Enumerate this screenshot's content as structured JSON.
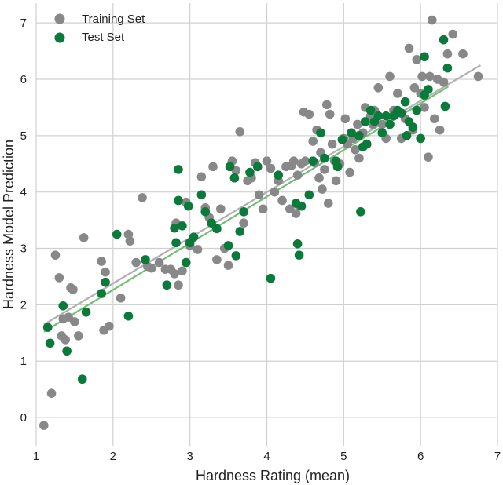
{
  "chart_data": {
    "type": "scatter",
    "title": "",
    "xlabel": "Hardness Rating (mean)",
    "ylabel": "Hardness Model Prediction",
    "xlim": [
      1,
      7
    ],
    "ylim": [
      -0.5,
      7.35
    ],
    "xticks": [
      1,
      2,
      3,
      4,
      5,
      6,
      7
    ],
    "yticks": [
      0,
      1,
      2,
      3,
      4,
      5,
      6,
      7
    ],
    "grid": true,
    "legend_position": "top-left",
    "colors": {
      "train": "#888888",
      "test": "#0a7a3a",
      "train_fit": "#b0b0b0",
      "test_fit": "#6fbf73",
      "grid": "#d0d0d0"
    },
    "series": [
      {
        "name": "Training Set",
        "color": "#888888",
        "points": [
          [
            1.1,
            -0.14
          ],
          [
            1.2,
            0.43
          ],
          [
            1.25,
            2.88
          ],
          [
            1.3,
            2.48
          ],
          [
            1.33,
            1.45
          ],
          [
            1.35,
            1.75
          ],
          [
            1.38,
            1.38
          ],
          [
            1.42,
            1.78
          ],
          [
            1.45,
            2.3
          ],
          [
            1.48,
            2.27
          ],
          [
            1.5,
            1.7
          ],
          [
            1.55,
            1.45
          ],
          [
            1.62,
            3.19
          ],
          [
            1.85,
            2.77
          ],
          [
            1.88,
            1.55
          ],
          [
            1.9,
            2.58
          ],
          [
            1.95,
            1.62
          ],
          [
            2.1,
            2.12
          ],
          [
            2.2,
            3.25
          ],
          [
            2.22,
            3.13
          ],
          [
            2.3,
            2.75
          ],
          [
            2.38,
            3.9
          ],
          [
            2.45,
            2.68
          ],
          [
            2.5,
            2.65
          ],
          [
            2.6,
            2.75
          ],
          [
            2.68,
            2.63
          ],
          [
            2.75,
            2.63
          ],
          [
            2.8,
            2.55
          ],
          [
            2.82,
            3.45
          ],
          [
            2.85,
            2.35
          ],
          [
            2.9,
            2.6
          ],
          [
            2.95,
            3.82
          ],
          [
            3.0,
            3.05
          ],
          [
            3.05,
            3.2
          ],
          [
            3.1,
            2.98
          ],
          [
            3.15,
            4.27
          ],
          [
            3.2,
            3.72
          ],
          [
            3.25,
            3.55
          ],
          [
            3.3,
            4.45
          ],
          [
            3.35,
            2.8
          ],
          [
            3.4,
            3.7
          ],
          [
            3.45,
            3.0
          ],
          [
            3.5,
            2.7
          ],
          [
            3.55,
            4.55
          ],
          [
            3.6,
            4.38
          ],
          [
            3.65,
            5.07
          ],
          [
            3.7,
            3.45
          ],
          [
            3.75,
            4.2
          ],
          [
            3.8,
            4.25
          ],
          [
            3.85,
            4.52
          ],
          [
            3.9,
            3.95
          ],
          [
            3.95,
            3.7
          ],
          [
            4.0,
            4.55
          ],
          [
            4.05,
            4.42
          ],
          [
            4.1,
            4.0
          ],
          [
            4.15,
            4.2
          ],
          [
            4.2,
            3.85
          ],
          [
            4.25,
            4.45
          ],
          [
            4.3,
            3.7
          ],
          [
            4.32,
            4.47
          ],
          [
            4.35,
            4.55
          ],
          [
            4.38,
            3.62
          ],
          [
            4.4,
            4.3
          ],
          [
            4.42,
            3.75
          ],
          [
            4.45,
            4.5
          ],
          [
            4.48,
            5.42
          ],
          [
            4.5,
            4.55
          ],
          [
            4.55,
            5.38
          ],
          [
            4.6,
            4.9
          ],
          [
            4.62,
            4.52
          ],
          [
            4.65,
            5.1
          ],
          [
            4.68,
            4.25
          ],
          [
            4.7,
            4.7
          ],
          [
            4.72,
            4.05
          ],
          [
            4.75,
            4.4
          ],
          [
            4.78,
            5.55
          ],
          [
            4.8,
            3.8
          ],
          [
            4.82,
            5.38
          ],
          [
            4.85,
            4.85
          ],
          [
            4.88,
            4.55
          ],
          [
            4.9,
            4.2
          ],
          [
            4.95,
            4.5
          ],
          [
            5.0,
            4.95
          ],
          [
            5.02,
            5.3
          ],
          [
            5.05,
            4.85
          ],
          [
            5.08,
            4.35
          ],
          [
            5.1,
            5.05
          ],
          [
            5.12,
            4.95
          ],
          [
            5.15,
            4.75
          ],
          [
            5.18,
            5.2
          ],
          [
            5.2,
            4.6
          ],
          [
            5.25,
            5.05
          ],
          [
            5.28,
            5.5
          ],
          [
            5.3,
            4.85
          ],
          [
            5.35,
            5.35
          ],
          [
            5.38,
            5.2
          ],
          [
            5.4,
            5.45
          ],
          [
            5.45,
            5.85
          ],
          [
            5.5,
            5.2
          ],
          [
            5.55,
            4.95
          ],
          [
            5.6,
            6.05
          ],
          [
            5.65,
            5.45
          ],
          [
            5.7,
            5.75
          ],
          [
            5.75,
            4.95
          ],
          [
            5.8,
            5.3
          ],
          [
            5.85,
            6.55
          ],
          [
            5.9,
            5.1
          ],
          [
            5.92,
            5.85
          ],
          [
            5.95,
            6.35
          ],
          [
            6.0,
            5.75
          ],
          [
            6.02,
            6.05
          ],
          [
            6.05,
            5.5
          ],
          [
            6.1,
            4.62
          ],
          [
            6.12,
            6.05
          ],
          [
            6.15,
            7.05
          ],
          [
            6.18,
            5.3
          ],
          [
            6.22,
            6.0
          ],
          [
            6.25,
            5.1
          ],
          [
            6.3,
            5.95
          ],
          [
            6.35,
            6.45
          ],
          [
            6.42,
            6.8
          ],
          [
            6.55,
            6.45
          ],
          [
            6.75,
            6.05
          ]
        ]
      },
      {
        "name": "Test Set",
        "color": "#0a7a3a",
        "points": [
          [
            1.15,
            1.6
          ],
          [
            1.18,
            1.32
          ],
          [
            1.35,
            1.98
          ],
          [
            1.4,
            1.18
          ],
          [
            1.6,
            0.68
          ],
          [
            1.65,
            1.87
          ],
          [
            1.85,
            2.2
          ],
          [
            1.9,
            2.4
          ],
          [
            2.05,
            3.25
          ],
          [
            2.2,
            1.8
          ],
          [
            2.42,
            2.8
          ],
          [
            2.7,
            2.35
          ],
          [
            2.8,
            3.36
          ],
          [
            2.82,
            3.1
          ],
          [
            2.85,
            4.4
          ],
          [
            2.85,
            3.85
          ],
          [
            2.9,
            3.4
          ],
          [
            2.95,
            2.75
          ],
          [
            2.98,
            3.75
          ],
          [
            3.0,
            3.1
          ],
          [
            3.05,
            3.2
          ],
          [
            3.15,
            3.95
          ],
          [
            3.2,
            3.65
          ],
          [
            3.28,
            3.45
          ],
          [
            3.35,
            3.35
          ],
          [
            3.5,
            3.05
          ],
          [
            3.52,
            4.45
          ],
          [
            3.58,
            4.25
          ],
          [
            3.6,
            2.87
          ],
          [
            3.65,
            3.3
          ],
          [
            3.7,
            3.65
          ],
          [
            3.78,
            4.35
          ],
          [
            3.88,
            4.45
          ],
          [
            4.05,
            2.47
          ],
          [
            4.15,
            4.3
          ],
          [
            4.38,
            3.8
          ],
          [
            4.4,
            3.08
          ],
          [
            4.42,
            2.88
          ],
          [
            4.45,
            3.75
          ],
          [
            4.55,
            3.95
          ],
          [
            4.6,
            4.55
          ],
          [
            4.7,
            5.05
          ],
          [
            4.75,
            4.6
          ],
          [
            4.9,
            4.55
          ],
          [
            4.92,
            4.45
          ],
          [
            4.98,
            4.93
          ],
          [
            5.1,
            5.05
          ],
          [
            5.2,
            5.0
          ],
          [
            5.22,
            3.65
          ],
          [
            5.25,
            4.8
          ],
          [
            5.28,
            5.25
          ],
          [
            5.3,
            4.85
          ],
          [
            5.35,
            5.45
          ],
          [
            5.4,
            5.25
          ],
          [
            5.45,
            5.35
          ],
          [
            5.5,
            5.05
          ],
          [
            5.55,
            5.35
          ],
          [
            5.6,
            5.2
          ],
          [
            5.65,
            5.35
          ],
          [
            5.7,
            5.45
          ],
          [
            5.75,
            5.4
          ],
          [
            5.8,
            5.6
          ],
          [
            5.82,
            5.0
          ],
          [
            5.85,
            5.25
          ],
          [
            5.9,
            5.15
          ],
          [
            5.95,
            5.45
          ],
          [
            6.0,
            4.95
          ],
          [
            6.05,
            5.72
          ],
          [
            6.05,
            6.4
          ],
          [
            6.1,
            5.82
          ],
          [
            6.3,
            6.7
          ],
          [
            6.32,
            5.52
          ],
          [
            6.35,
            6.2
          ]
        ]
      }
    ],
    "fit_lines": [
      {
        "name": "Training Set fit",
        "x": [
          1.1,
          6.78
        ],
        "y": [
          1.65,
          6.25
        ]
      },
      {
        "name": "Test Set fit",
        "x": [
          1.1,
          6.36
        ],
        "y": [
          1.52,
          5.87
        ]
      }
    ]
  }
}
